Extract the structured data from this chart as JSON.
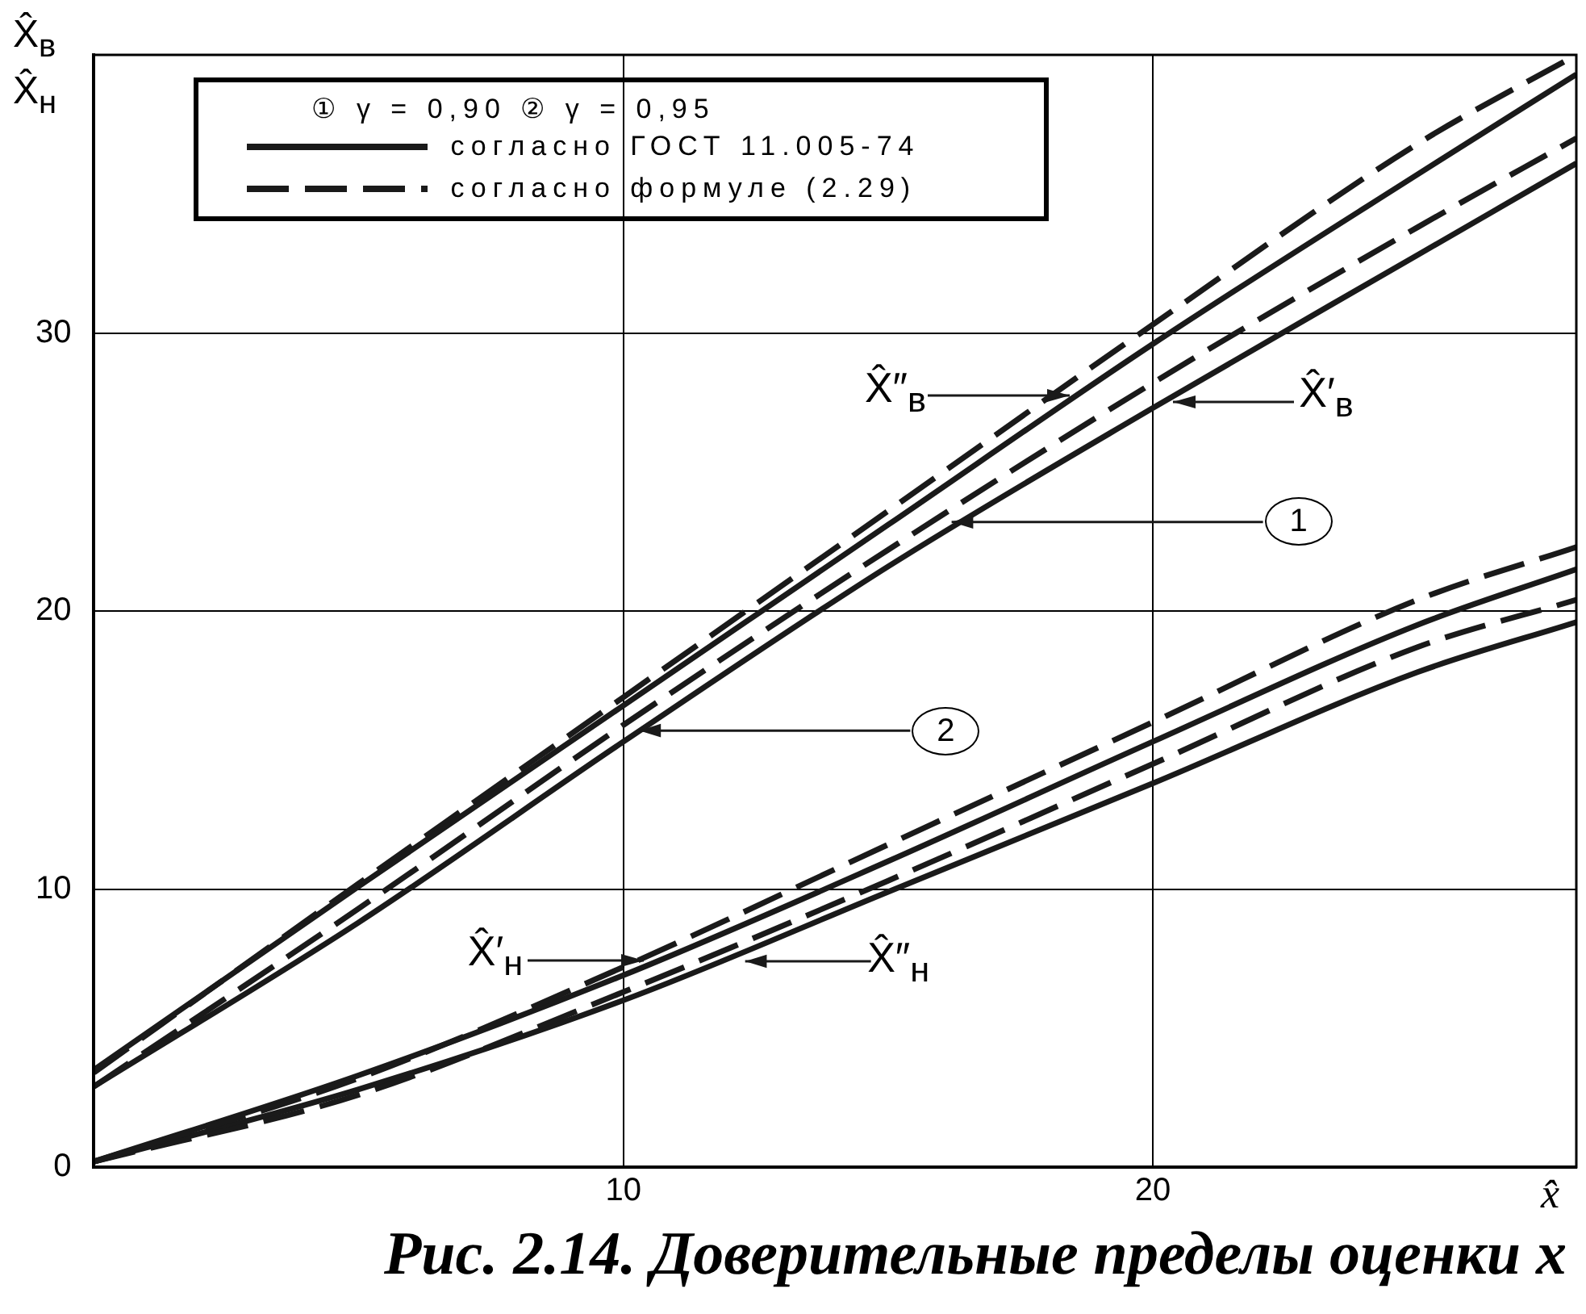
{
  "chart_data": {
    "type": "line",
    "xlabel": "x̂",
    "ylabel": "X̂$_{в}$\nX̂$_{н}$",
    "legend_title": "① γ = 0,90     ② γ = 0,95",
    "x": [
      0,
      5,
      10,
      15,
      20,
      25,
      28
    ],
    "series": [
      {
        "name": "согласно ГОСТ 11.005-74",
        "color": "#1a1a1a",
        "line_style": "solid",
        "values": [
          3.5,
          10.1,
          16.6,
          23.1,
          29.6,
          35.7,
          39.3
        ]
      },
      {
        "name": "согласно формуле (2.29)",
        "color": "#1a1a1a",
        "line_style": "dashed",
        "values": [
          3.4,
          10.2,
          16.9,
          23.6,
          30.3,
          36.8,
          40
        ]
      },
      {
        "color": "#1a1a1a",
        "line_style": "solid",
        "values": [
          2.9,
          8.8,
          15.3,
          21.6,
          27.3,
          32.8,
          36.1
        ]
      },
      {
        "color": "#1a1a1a",
        "line_style": "dashed",
        "values": [
          2.9,
          9.3,
          15.9,
          22.2,
          28.2,
          33.8,
          37
        ]
      },
      {
        "color": "#1a1a1a",
        "line_style": "dashed",
        "values": [
          0.2,
          3.2,
          7.2,
          11.6,
          16.0,
          20.4,
          22.3
        ]
      },
      {
        "color": "#1a1a1a",
        "line_style": "solid",
        "values": [
          0.2,
          3.3,
          6.9,
          11.0,
          15.3,
          19.5,
          21.5
        ]
      },
      {
        "color": "#1a1a1a",
        "line_style": "dashed",
        "values": [
          0.2,
          2.6,
          6.3,
          10.3,
          14.5,
          18.7,
          20.4
        ]
      },
      {
        "color": "#1a1a1a",
        "line_style": "solid",
        "values": [
          0.2,
          2.8,
          6.0,
          9.9,
          13.8,
          17.8,
          19.6
        ]
      }
    ],
    "xlim": [
      0,
      28
    ],
    "ylim": [
      0,
      40
    ],
    "xticks": [
      10,
      20
    ],
    "yticks": [
      0,
      10,
      20,
      30
    ],
    "grid": true,
    "legend": "top left",
    "marker": "none",
    "annotations": [
      "X̂″$_{в}$",
      "X̂′$_{в}$",
      {
        "text": "1",
        "x": 16.2,
        "y": 23.2
      },
      {
        "text": "2",
        "x": 10.3,
        "y": 15.7
      },
      "X̂′$_{н}$",
      {
        "text": "X̂″$_{н}$",
        "x": 12.3,
        "y": 7.4
      },
      "Рис. 2.14. Доверительные пределы оценки x"
    ]
  }
}
